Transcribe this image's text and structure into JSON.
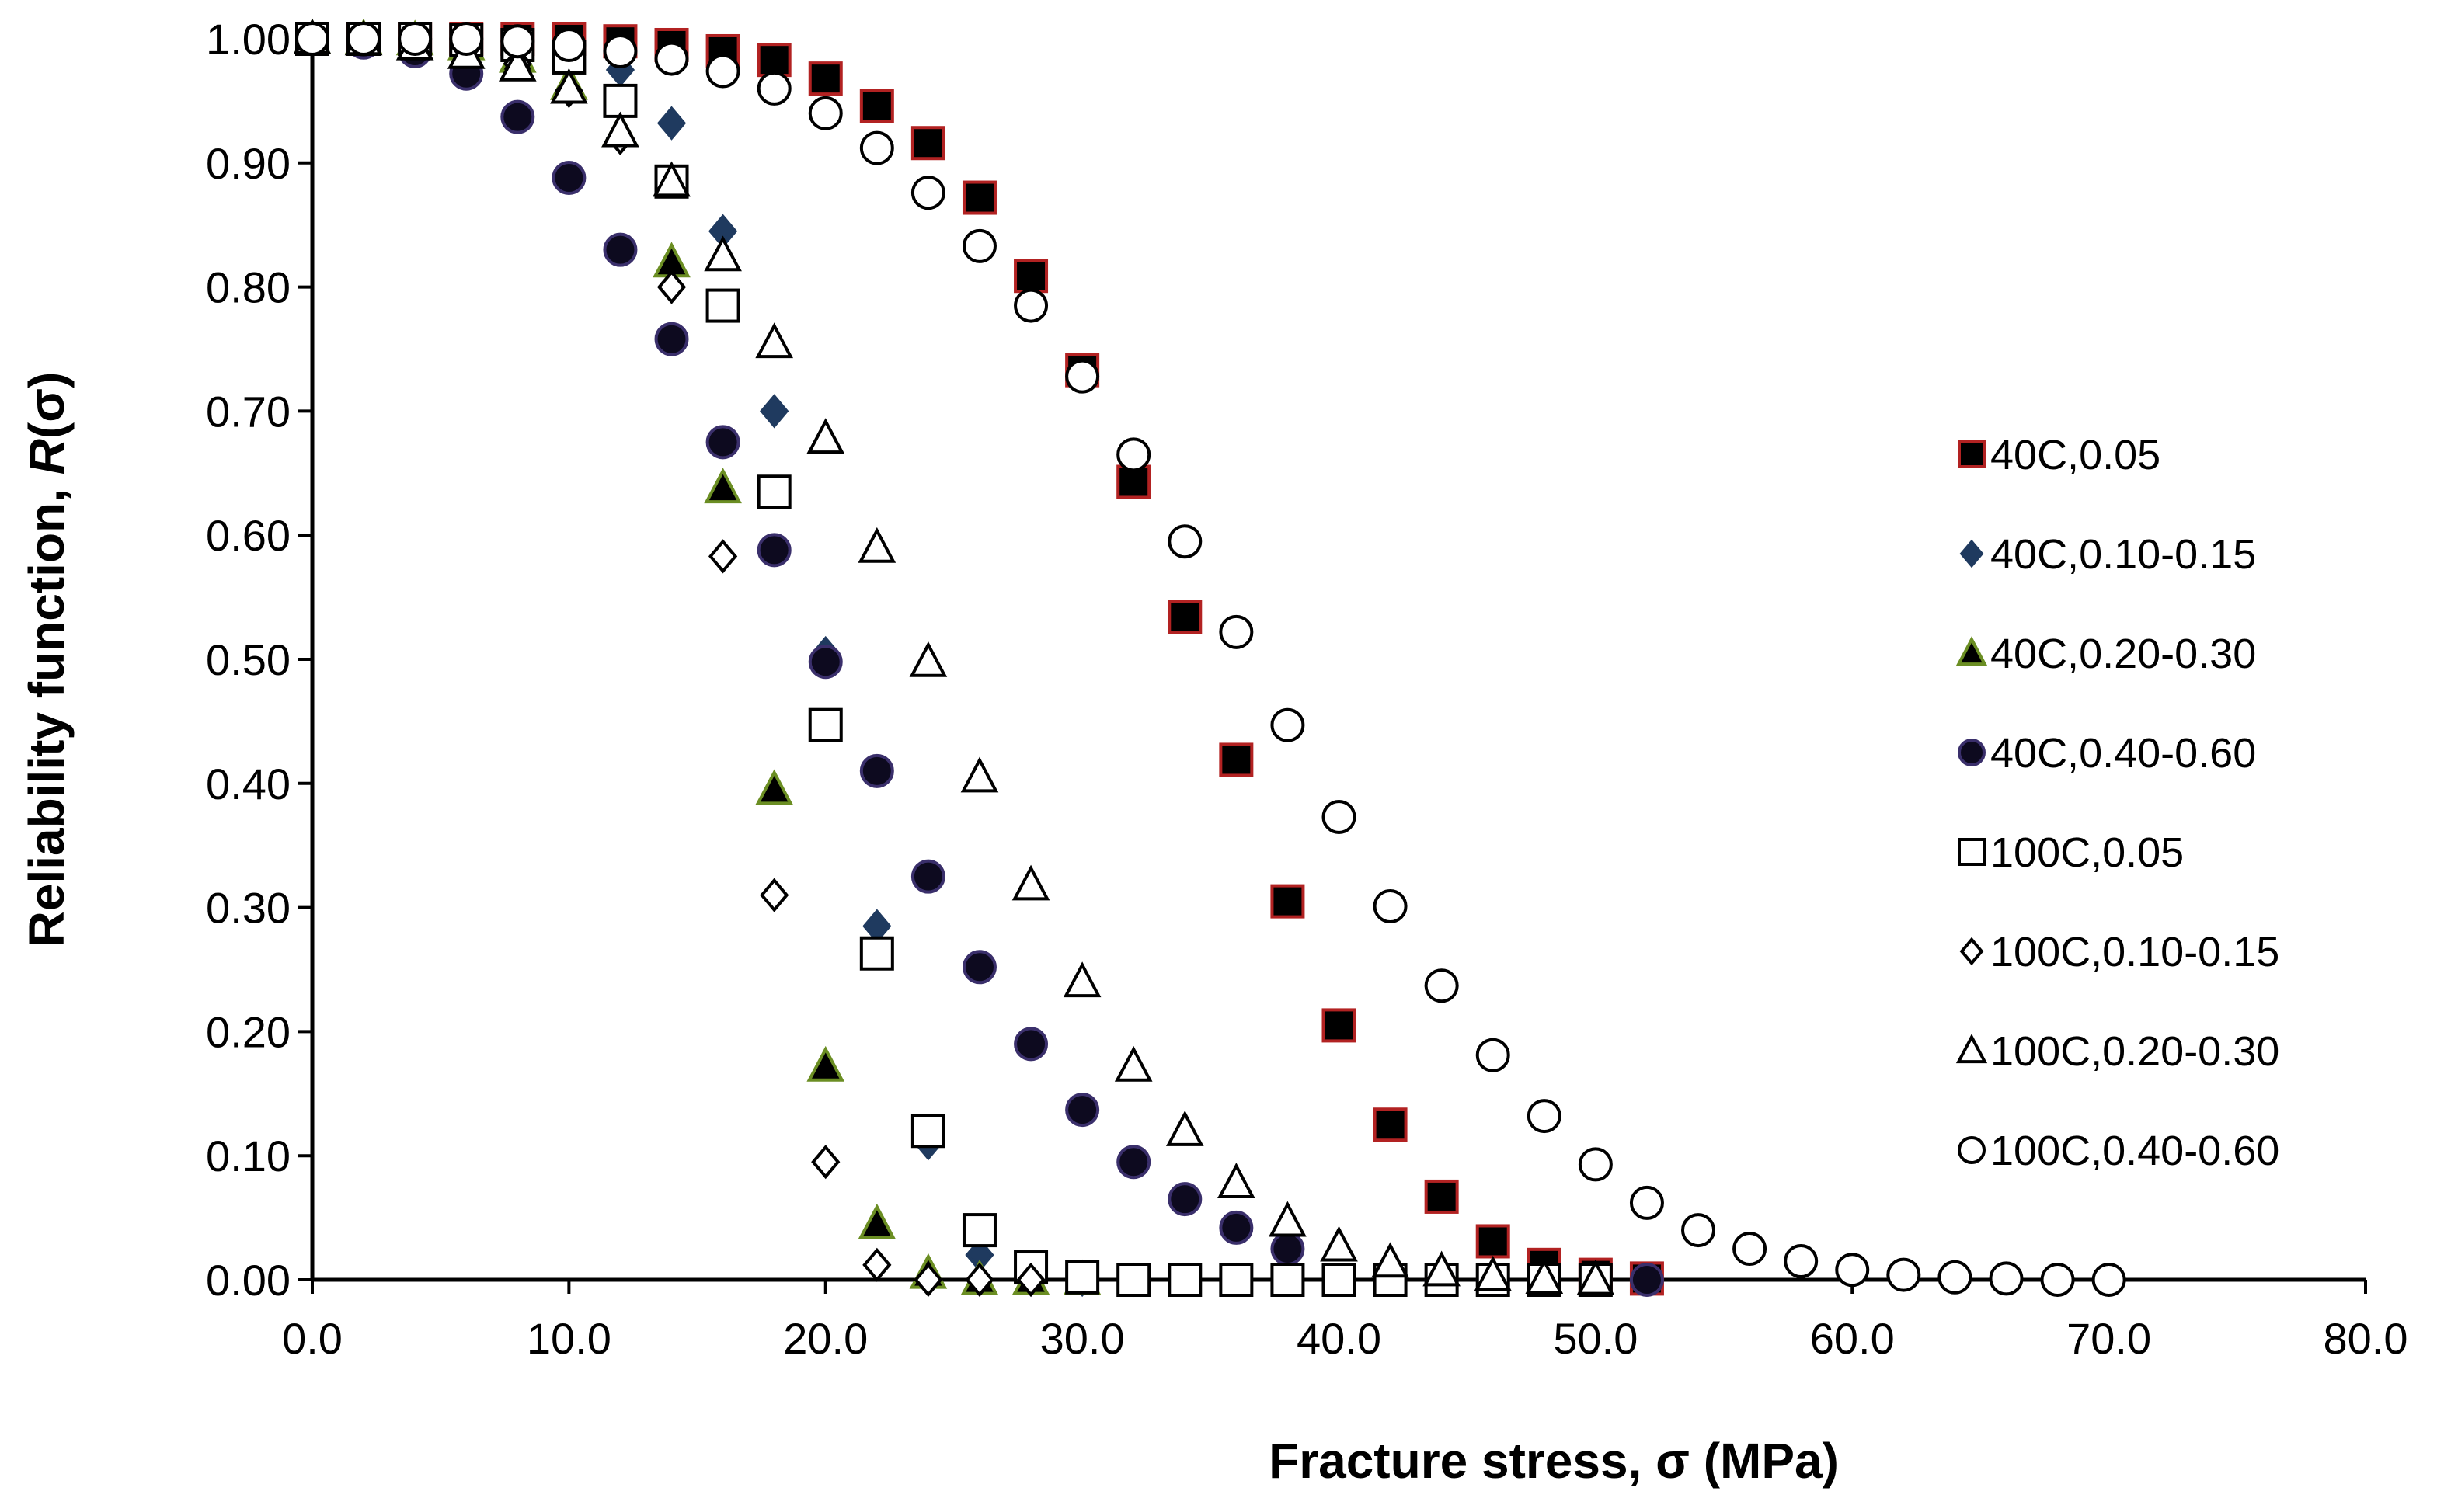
{
  "chart_data": {
    "type": "scatter",
    "title": "",
    "xlabel": "Fracture stress, σ (MPa)",
    "ylabel": "Reliability function, R(σ)",
    "ylabel_parts": {
      "prefix": "Reliability function, ",
      "italic": "R",
      "suffix": "(σ)"
    },
    "xlim": [
      0,
      80
    ],
    "ylim": [
      0,
      1
    ],
    "x_ticks": [
      0,
      10,
      20,
      30,
      40,
      50,
      60,
      70,
      80
    ],
    "x_tick_labels": [
      "0.0",
      "10.0",
      "20.0",
      "30.0",
      "40.0",
      "50.0",
      "60.0",
      "70.0",
      "80.0"
    ],
    "y_ticks": [
      0,
      0.1,
      0.2,
      0.3,
      0.4,
      0.5,
      0.6,
      0.7,
      0.8,
      0.9,
      1.0
    ],
    "y_tick_labels": [
      "0.00",
      "0.10",
      "0.20",
      "0.30",
      "0.40",
      "0.50",
      "0.60",
      "0.70",
      "0.80",
      "0.90",
      "1.00"
    ],
    "grid": false,
    "legend_position": "right",
    "series": [
      {
        "name": "40C,0.05",
        "marker": "square",
        "fill": "#000000",
        "stroke": "#b22222",
        "points": [
          [
            0,
            1.0
          ],
          [
            2,
            1.0
          ],
          [
            4,
            1.0
          ],
          [
            6,
            1.0
          ],
          [
            8,
            1.0
          ],
          [
            10,
            1.0
          ],
          [
            12,
            0.998
          ],
          [
            14,
            0.995
          ],
          [
            16,
            0.99
          ],
          [
            18,
            0.983
          ],
          [
            20,
            0.968
          ],
          [
            22,
            0.946
          ],
          [
            24,
            0.916
          ],
          [
            26,
            0.872
          ],
          [
            28,
            0.809
          ],
          [
            30,
            0.733
          ],
          [
            32,
            0.643
          ],
          [
            34,
            0.534
          ],
          [
            36,
            0.419
          ],
          [
            38,
            0.305
          ],
          [
            40,
            0.205
          ],
          [
            42,
            0.125
          ],
          [
            44,
            0.067
          ],
          [
            46,
            0.031
          ],
          [
            48,
            0.012
          ],
          [
            50,
            0.004
          ],
          [
            52,
            0.001
          ]
        ]
      },
      {
        "name": "40C,0.10-0.15",
        "marker": "diamond",
        "fill": "#1f3a5f",
        "stroke": "#1f3a5f",
        "points": [
          [
            0,
            1.0
          ],
          [
            2,
            1.0
          ],
          [
            4,
            0.999
          ],
          [
            6,
            0.997
          ],
          [
            8,
            0.992
          ],
          [
            10,
            0.98
          ],
          [
            12,
            0.975
          ],
          [
            14,
            0.932
          ],
          [
            16,
            0.845
          ],
          [
            18,
            0.7
          ],
          [
            20,
            0.505
          ],
          [
            22,
            0.285
          ],
          [
            24,
            0.11
          ],
          [
            26,
            0.02
          ],
          [
            28,
            0.0
          ],
          [
            30,
            0.0
          ],
          [
            32,
            0.0
          ],
          [
            34,
            0.0
          ],
          [
            36,
            0.0
          ],
          [
            38,
            0.0
          ],
          [
            40,
            0.0
          ],
          [
            42,
            0.0
          ],
          [
            44,
            0.0
          ],
          [
            46,
            0.0
          ],
          [
            48,
            0.0
          ],
          [
            50,
            0.0
          ]
        ]
      },
      {
        "name": "40C,0.20-0.30",
        "marker": "triangle",
        "fill": "#000000",
        "stroke": "#6b8e23",
        "points": [
          [
            0,
            1.0
          ],
          [
            2,
            1.0
          ],
          [
            4,
            0.999
          ],
          [
            6,
            0.995
          ],
          [
            8,
            0.985
          ],
          [
            10,
            0.963
          ],
          [
            12,
            0.925
          ],
          [
            14,
            0.82
          ],
          [
            16,
            0.638
          ],
          [
            18,
            0.395
          ],
          [
            20,
            0.172
          ],
          [
            22,
            0.045
          ],
          [
            24,
            0.005
          ],
          [
            26,
            0.0
          ],
          [
            28,
            0.0
          ],
          [
            30,
            0.0
          ]
        ]
      },
      {
        "name": "40C,0.40-0.60",
        "marker": "circle",
        "fill": "#0d0a1f",
        "stroke": "#3a2f6b",
        "points": [
          [
            0,
            1.0
          ],
          [
            2,
            0.997
          ],
          [
            4,
            0.99
          ],
          [
            6,
            0.972
          ],
          [
            8,
            0.937
          ],
          [
            10,
            0.888
          ],
          [
            12,
            0.83
          ],
          [
            14,
            0.758
          ],
          [
            16,
            0.675
          ],
          [
            18,
            0.588
          ],
          [
            20,
            0.498
          ],
          [
            22,
            0.41
          ],
          [
            24,
            0.325
          ],
          [
            26,
            0.252
          ],
          [
            28,
            0.19
          ],
          [
            30,
            0.137
          ],
          [
            32,
            0.095
          ],
          [
            34,
            0.065
          ],
          [
            36,
            0.042
          ],
          [
            38,
            0.025
          ],
          [
            40,
            0.0
          ],
          [
            42,
            0.0
          ],
          [
            44,
            0.0
          ],
          [
            46,
            0.0
          ],
          [
            48,
            0.0
          ],
          [
            50,
            0.0
          ],
          [
            52,
            0.0
          ]
        ]
      },
      {
        "name": "100C,0.05",
        "marker": "square",
        "fill": "#ffffff",
        "stroke": "#000000",
        "points": [
          [
            0,
            1.0
          ],
          [
            2,
            1.0
          ],
          [
            4,
            1.0
          ],
          [
            6,
            0.999
          ],
          [
            8,
            0.995
          ],
          [
            10,
            0.985
          ],
          [
            12,
            0.95
          ],
          [
            14,
            0.885
          ],
          [
            16,
            0.785
          ],
          [
            18,
            0.635
          ],
          [
            20,
            0.447
          ],
          [
            22,
            0.263
          ],
          [
            24,
            0.12
          ],
          [
            26,
            0.04
          ],
          [
            28,
            0.01
          ],
          [
            30,
            0.002
          ],
          [
            32,
            0.0
          ],
          [
            34,
            0.0
          ],
          [
            36,
            0.0
          ],
          [
            38,
            0.0
          ],
          [
            40,
            0.0
          ],
          [
            42,
            0.0
          ],
          [
            44,
            0.0
          ],
          [
            46,
            0.0
          ],
          [
            48,
            0.0
          ],
          [
            50,
            0.0
          ]
        ]
      },
      {
        "name": "100C,0.10-0.15",
        "marker": "diamond",
        "fill": "#ffffff",
        "stroke": "#000000",
        "points": [
          [
            0,
            1.0
          ],
          [
            2,
            1.0
          ],
          [
            4,
            0.998
          ],
          [
            6,
            0.992
          ],
          [
            8,
            0.98
          ],
          [
            10,
            0.958
          ],
          [
            12,
            0.92
          ],
          [
            14,
            0.8
          ],
          [
            16,
            0.583
          ],
          [
            18,
            0.31
          ],
          [
            20,
            0.095
          ],
          [
            22,
            0.012
          ],
          [
            24,
            0.0
          ],
          [
            26,
            0.0
          ],
          [
            28,
            0.0
          ]
        ]
      },
      {
        "name": "100C,0.20-0.30",
        "marker": "triangle",
        "fill": "#ffffff",
        "stroke": "#000000",
        "points": [
          [
            0,
            1.0
          ],
          [
            2,
            0.999
          ],
          [
            4,
            0.995
          ],
          [
            6,
            0.988
          ],
          [
            8,
            0.978
          ],
          [
            10,
            0.96
          ],
          [
            12,
            0.925
          ],
          [
            14,
            0.885
          ],
          [
            16,
            0.825
          ],
          [
            18,
            0.755
          ],
          [
            20,
            0.678
          ],
          [
            22,
            0.59
          ],
          [
            24,
            0.498
          ],
          [
            26,
            0.405
          ],
          [
            28,
            0.318
          ],
          [
            30,
            0.24
          ],
          [
            32,
            0.172
          ],
          [
            34,
            0.12
          ],
          [
            36,
            0.078
          ],
          [
            38,
            0.047
          ],
          [
            40,
            0.027
          ],
          [
            42,
            0.014
          ],
          [
            44,
            0.007
          ],
          [
            46,
            0.003
          ],
          [
            48,
            0.001
          ],
          [
            50,
            0.0
          ]
        ]
      },
      {
        "name": "100C,0.40-0.60",
        "marker": "circle",
        "fill": "#ffffff",
        "stroke": "#000000",
        "points": [
          [
            0,
            1.0
          ],
          [
            2,
            1.0
          ],
          [
            4,
            1.0
          ],
          [
            6,
            1.0
          ],
          [
            8,
            0.998
          ],
          [
            10,
            0.995
          ],
          [
            12,
            0.99
          ],
          [
            14,
            0.984
          ],
          [
            16,
            0.974
          ],
          [
            18,
            0.96
          ],
          [
            20,
            0.94
          ],
          [
            22,
            0.912
          ],
          [
            24,
            0.876
          ],
          [
            26,
            0.833
          ],
          [
            28,
            0.785
          ],
          [
            30,
            0.728
          ],
          [
            32,
            0.665
          ],
          [
            34,
            0.595
          ],
          [
            36,
            0.522
          ],
          [
            38,
            0.447
          ],
          [
            40,
            0.373
          ],
          [
            42,
            0.301
          ],
          [
            44,
            0.237
          ],
          [
            46,
            0.181
          ],
          [
            48,
            0.132
          ],
          [
            50,
            0.093
          ],
          [
            52,
            0.062
          ],
          [
            54,
            0.04
          ],
          [
            56,
            0.025
          ],
          [
            58,
            0.015
          ],
          [
            60,
            0.008
          ],
          [
            62,
            0.004
          ],
          [
            64,
            0.002
          ],
          [
            66,
            0.001
          ],
          [
            68,
            0.0
          ],
          [
            70,
            0.0
          ]
        ]
      }
    ]
  }
}
